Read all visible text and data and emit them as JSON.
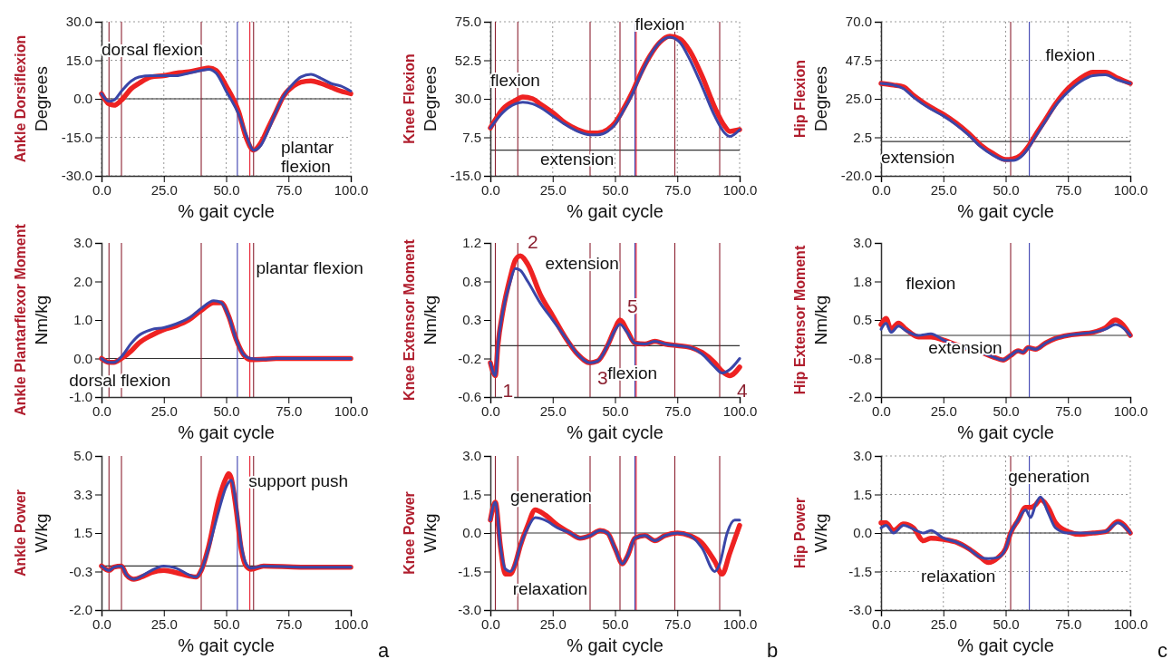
{
  "chart_data": [
    {
      "type": "line",
      "title": "Ankle Dorsiflexion",
      "ylabel": "Degrees",
      "xlabel": "% gait cycle",
      "grid": true,
      "xlim": [
        0,
        100
      ],
      "ylim": [
        -30,
        30
      ],
      "xticks": [
        {
          "value": 0,
          "label": "0.0"
        },
        {
          "value": 25,
          "label": "25.0"
        },
        {
          "value": 50,
          "label": "50.0"
        },
        {
          "value": 75,
          "label": "75.0"
        },
        {
          "value": 100,
          "label": "100.0"
        }
      ],
      "yticks": [
        {
          "value": -30,
          "label": "-30.0"
        },
        {
          "value": -15,
          "label": "-15.0"
        },
        {
          "value": 0,
          "label": "0.0"
        },
        {
          "value": 15,
          "label": "15.0"
        },
        {
          "value": 30,
          "label": "30.0"
        }
      ],
      "series": [
        {
          "color": "#ee2222",
          "x": [
            0,
            3,
            5,
            8,
            12,
            15,
            20,
            25,
            30,
            35,
            40,
            43,
            46,
            50,
            55,
            58,
            61,
            64,
            67,
            70,
            73,
            77,
            80,
            84,
            88,
            92,
            96,
            100
          ],
          "values": [
            2,
            -2,
            -2.5,
            -0.5,
            4,
            6,
            8.5,
            9,
            10,
            10.5,
            11.5,
            12,
            11,
            5,
            -5,
            -15,
            -20,
            -17,
            -11,
            -5,
            1,
            5,
            6.5,
            7,
            6,
            4.5,
            3,
            2
          ]
        },
        {
          "color": "#3a46a8",
          "x": [
            0,
            3,
            5,
            8,
            12,
            15,
            20,
            25,
            30,
            35,
            40,
            43,
            46,
            50,
            55,
            58,
            61,
            64,
            67,
            70,
            73,
            77,
            80,
            84,
            88,
            92,
            96,
            100
          ],
          "values": [
            2,
            -1,
            -0.5,
            3,
            7,
            8.5,
            9,
            9,
            9,
            10,
            11,
            11.5,
            10,
            3,
            -6,
            -14,
            -20,
            -18,
            -12,
            -5,
            1,
            6,
            8.5,
            9.5,
            8,
            6,
            5,
            3
          ]
        }
      ],
      "ref_lines": [
        {
          "axis": "y",
          "value": 0,
          "color": "#333333"
        },
        {
          "axis": "x",
          "value": 3,
          "color": "#8b2030"
        },
        {
          "axis": "x",
          "value": 8,
          "color": "#8b2030"
        },
        {
          "axis": "x",
          "value": 40,
          "color": "#8b2030"
        },
        {
          "axis": "x",
          "value": 54.5,
          "color": "#3b3fb0"
        },
        {
          "axis": "x",
          "value": 59.5,
          "color": "#e8192c"
        },
        {
          "axis": "x",
          "value": 61,
          "color": "#8b2030"
        }
      ],
      "annotations": [
        "dorsal flexion",
        "plantar flexion"
      ]
    },
    {
      "type": "line",
      "title": "Knee Flexion",
      "ylabel": "Degrees",
      "xlabel": "% gait cycle",
      "grid": true,
      "xlim": [
        0,
        100
      ],
      "ylim": [
        -15,
        75
      ],
      "xticks": [
        {
          "value": 0,
          "label": "0.0"
        },
        {
          "value": 25,
          "label": "25.0"
        },
        {
          "value": 50,
          "label": "50.0"
        },
        {
          "value": 75,
          "label": "75.0"
        },
        {
          "value": 100,
          "label": "100.0"
        }
      ],
      "yticks": [
        {
          "value": -15,
          "label": "-15.0"
        },
        {
          "value": 7.5,
          "label": "7.5"
        },
        {
          "value": 30,
          "label": "30.0"
        },
        {
          "value": 52.5,
          "label": "52.5"
        },
        {
          "value": 75,
          "label": "75.0"
        }
      ],
      "series": [
        {
          "color": "#ee2222",
          "x": [
            0,
            5,
            10,
            13,
            17,
            20,
            25,
            30,
            35,
            40,
            43,
            47,
            50,
            53,
            57,
            60,
            64,
            68,
            72,
            76,
            80,
            85,
            90,
            94,
            96,
            100
          ],
          "values": [
            13,
            24,
            29,
            31,
            30,
            27,
            22,
            16,
            12,
            10,
            10,
            12,
            16,
            23,
            34,
            44,
            55,
            63,
            66.5,
            65,
            58,
            43,
            25,
            14,
            11,
            12
          ]
        },
        {
          "color": "#3a46a8",
          "x": [
            0,
            5,
            10,
            13,
            17,
            20,
            25,
            30,
            35,
            40,
            43,
            47,
            50,
            53,
            57,
            60,
            64,
            68,
            72,
            76,
            80,
            85,
            90,
            94,
            96,
            100
          ],
          "values": [
            13,
            22,
            27,
            28,
            27,
            25,
            20,
            15,
            11,
            9,
            9,
            11,
            15,
            22,
            33,
            43,
            55,
            63,
            66,
            63,
            53,
            37,
            20,
            10,
            8,
            12
          ]
        }
      ],
      "ref_lines": [
        {
          "axis": "y",
          "value": 0,
          "color": "#333333"
        },
        {
          "axis": "x",
          "value": 2,
          "color": "#8b2030"
        },
        {
          "axis": "x",
          "value": 11,
          "color": "#8b2030"
        },
        {
          "axis": "x",
          "value": 40,
          "color": "#8b2030"
        },
        {
          "axis": "x",
          "value": 52,
          "color": "#8b2030"
        },
        {
          "axis": "x",
          "value": 58,
          "color": "#3b3fb0"
        },
        {
          "axis": "x",
          "value": 58.5,
          "color": "#e8192c"
        },
        {
          "axis": "x",
          "value": 74,
          "color": "#8b2030"
        },
        {
          "axis": "x",
          "value": 92,
          "color": "#8b2030"
        }
      ],
      "annotations": [
        "flexion",
        "flexion",
        "extension"
      ]
    },
    {
      "type": "line",
      "title": "Hip Flexion",
      "ylabel": "Degrees",
      "xlabel": "% gait cycle",
      "grid": true,
      "xlim": [
        0,
        100
      ],
      "ylim": [
        -20,
        70
      ],
      "xticks": [
        {
          "value": 0,
          "label": "0.0"
        },
        {
          "value": 25,
          "label": "25.0"
        },
        {
          "value": 50,
          "label": "50.0"
        },
        {
          "value": 75,
          "label": "75.0"
        },
        {
          "value": 100,
          "label": "100.0"
        }
      ],
      "yticks": [
        {
          "value": -20,
          "label": "-20.0"
        },
        {
          "value": 2.5,
          "label": "2.5"
        },
        {
          "value": 25,
          "label": "25.0"
        },
        {
          "value": 47.5,
          "label": "47.5"
        },
        {
          "value": 70,
          "label": "70.0"
        }
      ],
      "series": [
        {
          "color": "#ee2222",
          "x": [
            0,
            5,
            9,
            13,
            20,
            25,
            30,
            35,
            40,
            45,
            50,
            53,
            56,
            59,
            62,
            66,
            70,
            75,
            80,
            85,
            90,
            95,
            100
          ],
          "values": [
            34,
            33,
            32,
            27,
            20,
            16,
            11,
            5,
            -2,
            -7,
            -10.5,
            -10,
            -8,
            -3,
            4,
            13,
            22,
            31,
            37,
            40.5,
            40.5,
            37,
            34
          ]
        },
        {
          "color": "#3a46a8",
          "x": [
            0,
            5,
            9,
            13,
            20,
            25,
            30,
            35,
            40,
            45,
            50,
            53,
            56,
            59,
            62,
            66,
            70,
            75,
            80,
            85,
            90,
            95,
            100
          ],
          "values": [
            34,
            33,
            31,
            26,
            19,
            15,
            10,
            4,
            -3,
            -8,
            -11,
            -11,
            -9,
            -4,
            3,
            12,
            21,
            29,
            35,
            38.5,
            39,
            36,
            34
          ]
        }
      ],
      "ref_lines": [
        {
          "axis": "y",
          "value": 0,
          "color": "#333333"
        },
        {
          "axis": "x",
          "value": 52,
          "color": "#8b2030"
        },
        {
          "axis": "x",
          "value": 59.5,
          "color": "#3b3fb0"
        }
      ],
      "annotations": [
        "flexion",
        "extension"
      ]
    },
    {
      "type": "line",
      "title": "Ankle Plantarflexor Moment",
      "ylabel": "Nm/kg",
      "xlabel": "% gait cycle",
      "xlim": [
        0,
        100
      ],
      "ylim": [
        -1,
        3
      ],
      "xticks": [
        {
          "value": 0,
          "label": "0.0"
        },
        {
          "value": 25,
          "label": "25.0"
        },
        {
          "value": 50,
          "label": "50.0"
        },
        {
          "value": 75,
          "label": "75.0"
        },
        {
          "value": 100,
          "label": "100.0"
        }
      ],
      "yticks": [
        {
          "value": -1,
          "label": "-1.0"
        },
        {
          "value": 0,
          "label": "0.0"
        },
        {
          "value": 1,
          "label": "1.0"
        },
        {
          "value": 2,
          "label": "2.0"
        },
        {
          "value": 3,
          "label": "3.0"
        }
      ],
      "series": [
        {
          "color": "#ee2222",
          "x": [
            0,
            3,
            5,
            8,
            12,
            15,
            20,
            25,
            30,
            35,
            40,
            45,
            48,
            51,
            54,
            57,
            60,
            65,
            70,
            80,
            90,
            100
          ],
          "values": [
            0,
            -0.1,
            -0.1,
            0,
            0.2,
            0.4,
            0.6,
            0.75,
            0.85,
            1,
            1.25,
            1.45,
            1.45,
            1.1,
            0.5,
            0.1,
            -0.03,
            -0.02,
            0,
            0,
            0,
            0
          ]
        },
        {
          "color": "#3a46a8",
          "x": [
            0,
            3,
            5,
            8,
            12,
            15,
            20,
            25,
            30,
            35,
            40,
            45,
            48,
            51,
            54,
            57,
            60,
            65,
            70,
            80,
            90,
            100
          ],
          "values": [
            0,
            -0.1,
            -0.1,
            0.05,
            0.4,
            0.6,
            0.75,
            0.8,
            0.9,
            1.05,
            1.3,
            1.5,
            1.45,
            1.1,
            0.5,
            0.1,
            0,
            -0.02,
            0,
            0,
            0,
            0
          ]
        }
      ],
      "ref_lines": [
        {
          "axis": "y",
          "value": 0,
          "color": "#333333"
        },
        {
          "axis": "x",
          "value": 3,
          "color": "#8b2030"
        },
        {
          "axis": "x",
          "value": 8,
          "color": "#8b2030"
        },
        {
          "axis": "x",
          "value": 40,
          "color": "#8b2030"
        },
        {
          "axis": "x",
          "value": 54.5,
          "color": "#3b3fb0"
        },
        {
          "axis": "x",
          "value": 59.5,
          "color": "#e8192c"
        },
        {
          "axis": "x",
          "value": 61,
          "color": "#8b2030"
        }
      ],
      "annotations": [
        "plantar flexion",
        "dorsal flexion"
      ]
    },
    {
      "type": "line",
      "title": "Knee Extensor Moment",
      "ylabel": "Nm/kg",
      "xlabel": "% gait cycle",
      "xlim": [
        0,
        100
      ],
      "ylim": [
        -0.6,
        1.2
      ],
      "xticks": [
        {
          "value": 0,
          "label": "0.0"
        },
        {
          "value": 25,
          "label": "25.0"
        },
        {
          "value": 50,
          "label": "50.0"
        },
        {
          "value": 75,
          "label": "75.0"
        },
        {
          "value": 100,
          "label": "100.0"
        }
      ],
      "yticks": [
        {
          "value": -0.6,
          "label": "-0.6"
        },
        {
          "value": -0.15,
          "label": "-0.2"
        },
        {
          "value": 0.3,
          "label": "0.3"
        },
        {
          "value": 0.75,
          "label": "0.8"
        },
        {
          "value": 1.2,
          "label": "1.2"
        }
      ],
      "series": [
        {
          "color": "#ee2222",
          "x": [
            0,
            2,
            3,
            5,
            8,
            10,
            12,
            15,
            20,
            25,
            30,
            35,
            40,
            43,
            47,
            50,
            52,
            55,
            58,
            62,
            66,
            70,
            75,
            80,
            85,
            90,
            93,
            96,
            100
          ],
          "values": [
            -0.2,
            -0.35,
            0,
            0.4,
            0.8,
            1,
            1.05,
            0.95,
            0.6,
            0.35,
            0.1,
            -0.1,
            -0.2,
            -0.18,
            0,
            0.2,
            0.3,
            0.17,
            0.03,
            0.02,
            0.05,
            0.02,
            0,
            -0.02,
            -0.08,
            -0.2,
            -0.3,
            -0.35,
            -0.25
          ]
        },
        {
          "color": "#3a46a8",
          "x": [
            0,
            2,
            3,
            5,
            8,
            10,
            12,
            15,
            20,
            25,
            30,
            35,
            40,
            43,
            47,
            50,
            52,
            55,
            58,
            62,
            66,
            70,
            75,
            80,
            85,
            90,
            93,
            96,
            100
          ],
          "values": [
            -0.2,
            -0.35,
            0,
            0.4,
            0.75,
            0.9,
            0.88,
            0.75,
            0.5,
            0.3,
            0.1,
            -0.1,
            -0.2,
            -0.18,
            0,
            0.18,
            0.25,
            0.15,
            0.03,
            0.02,
            0.05,
            0.02,
            0,
            -0.02,
            -0.1,
            -0.25,
            -0.32,
            -0.28,
            -0.15
          ]
        }
      ],
      "ref_lines": [
        {
          "axis": "y",
          "value": 0,
          "color": "#333333"
        },
        {
          "axis": "x",
          "value": 2,
          "color": "#8b2030"
        },
        {
          "axis": "x",
          "value": 11,
          "color": "#8b2030"
        },
        {
          "axis": "x",
          "value": 40,
          "color": "#8b2030"
        },
        {
          "axis": "x",
          "value": 52,
          "color": "#8b2030"
        },
        {
          "axis": "x",
          "value": 58,
          "color": "#3b3fb0"
        },
        {
          "axis": "x",
          "value": 58.5,
          "color": "#e8192c"
        },
        {
          "axis": "x",
          "value": 74,
          "color": "#8b2030"
        },
        {
          "axis": "x",
          "value": 92,
          "color": "#8b2030"
        }
      ],
      "annotations": [
        {
          "text": "2",
          "x": 12,
          "y": 1.05
        },
        "extension",
        {
          "text": "5",
          "x": 52,
          "y": 0.3
        },
        {
          "text": "1",
          "x": 2,
          "y": -0.35
        },
        {
          "text": "3",
          "x": 40,
          "y": -0.2
        },
        "flexion",
        {
          "text": "4",
          "x": 96,
          "y": -0.35
        }
      ]
    },
    {
      "type": "line",
      "title": "Hip Extensor Moment",
      "ylabel": "Nm/kg",
      "xlabel": "% gait cycle",
      "xlim": [
        0,
        100
      ],
      "ylim": [
        -2,
        3
      ],
      "xticks": [
        {
          "value": 0,
          "label": "0.0"
        },
        {
          "value": 25,
          "label": "25.0"
        },
        {
          "value": 50,
          "label": "50.0"
        },
        {
          "value": 75,
          "label": "75.0"
        },
        {
          "value": 100,
          "label": "100.0"
        }
      ],
      "yticks": [
        {
          "value": -2,
          "label": "-2.0"
        },
        {
          "value": -0.75,
          "label": "-0.8"
        },
        {
          "value": 0.5,
          "label": "0.5"
        },
        {
          "value": 1.75,
          "label": "1.8"
        },
        {
          "value": 3,
          "label": "3.0"
        }
      ],
      "series": [
        {
          "color": "#ee2222",
          "x": [
            0,
            2,
            4,
            7,
            10,
            15,
            20,
            25,
            30,
            35,
            40,
            45,
            49,
            52,
            55,
            57,
            59,
            62,
            66,
            70,
            75,
            80,
            85,
            90,
            94,
            97,
            100
          ],
          "values": [
            0.35,
            0.55,
            0.2,
            0.4,
            0.2,
            -0.05,
            -0.05,
            -0.15,
            -0.3,
            -0.45,
            -0.55,
            -0.7,
            -0.8,
            -0.65,
            -0.5,
            -0.55,
            -0.4,
            -0.45,
            -0.25,
            -0.1,
            0,
            0.05,
            0.1,
            0.25,
            0.5,
            0.35,
            0
          ]
        },
        {
          "color": "#3a46a8",
          "x": [
            0,
            2,
            4,
            7,
            10,
            15,
            20,
            25,
            30,
            35,
            40,
            45,
            49,
            52,
            55,
            57,
            59,
            62,
            66,
            70,
            75,
            80,
            85,
            90,
            94,
            97,
            100
          ],
          "values": [
            0.2,
            0.4,
            0.1,
            0.3,
            0.15,
            0,
            0.05,
            -0.15,
            -0.3,
            -0.45,
            -0.55,
            -0.7,
            -0.8,
            -0.65,
            -0.5,
            -0.55,
            -0.4,
            -0.45,
            -0.25,
            -0.1,
            0,
            0.05,
            0.1,
            0.2,
            0.35,
            0.25,
            0
          ]
        }
      ],
      "ref_lines": [
        {
          "axis": "y",
          "value": 0,
          "color": "#333333"
        },
        {
          "axis": "x",
          "value": 52,
          "color": "#8b2030"
        },
        {
          "axis": "x",
          "value": 59.5,
          "color": "#3b3fb0"
        }
      ],
      "annotations": [
        "flexion",
        "extension"
      ]
    },
    {
      "type": "line",
      "title": "Ankle Power",
      "ylabel": "W/kg",
      "xlabel": "% gait cycle",
      "xlim": [
        0,
        100
      ],
      "ylim": [
        -2,
        5
      ],
      "xticks": [
        {
          "value": 0,
          "label": "0.0"
        },
        {
          "value": 25,
          "label": "25.0"
        },
        {
          "value": 50,
          "label": "50.0"
        },
        {
          "value": 75,
          "label": "75.0"
        },
        {
          "value": 100,
          "label": "100.0"
        }
      ],
      "yticks": [
        {
          "value": -2,
          "label": "-2.0"
        },
        {
          "value": -0.25,
          "label": "-0.3"
        },
        {
          "value": 1.5,
          "label": "1.5"
        },
        {
          "value": 3.25,
          "label": "3.3"
        },
        {
          "value": 5,
          "label": "5.0"
        }
      ],
      "series": [
        {
          "color": "#ee2222",
          "x": [
            0,
            3,
            5,
            8,
            10,
            13,
            17,
            20,
            25,
            30,
            35,
            38,
            40,
            43,
            47,
            50,
            51,
            52,
            54,
            56,
            58,
            60,
            65,
            80,
            100
          ],
          "values": [
            0,
            -0.2,
            -0.05,
            0,
            -0.4,
            -0.6,
            -0.45,
            -0.3,
            -0.2,
            -0.3,
            -0.45,
            -0.5,
            -0.2,
            0.9,
            3,
            4,
            4.2,
            4,
            2.6,
            0.8,
            0,
            -0.15,
            0,
            -0.05,
            -0.05
          ]
        },
        {
          "color": "#3a46a8",
          "x": [
            0,
            3,
            5,
            8,
            10,
            13,
            17,
            20,
            25,
            30,
            35,
            38,
            40,
            43,
            47,
            50,
            51,
            52,
            54,
            56,
            58,
            60,
            65,
            80,
            100
          ],
          "values": [
            0,
            -0.2,
            -0.05,
            0,
            -0.4,
            -0.6,
            -0.4,
            -0.2,
            0,
            -0.1,
            -0.4,
            -0.5,
            -0.2,
            0.8,
            2.5,
            3.6,
            3.8,
            3.9,
            2.8,
            1,
            0.1,
            -0.1,
            0,
            -0.05,
            -0.05
          ]
        }
      ],
      "ref_lines": [
        {
          "axis": "y",
          "value": 0,
          "color": "#333333"
        },
        {
          "axis": "x",
          "value": 3,
          "color": "#8b2030"
        },
        {
          "axis": "x",
          "value": 8,
          "color": "#8b2030"
        },
        {
          "axis": "x",
          "value": 40,
          "color": "#8b2030"
        },
        {
          "axis": "x",
          "value": 54.5,
          "color": "#3b3fb0"
        },
        {
          "axis": "x",
          "value": 59.5,
          "color": "#e8192c"
        },
        {
          "axis": "x",
          "value": 61,
          "color": "#8b2030"
        }
      ],
      "annotations": [
        "support push",
        "a"
      ]
    },
    {
      "type": "line",
      "title": "Knee Power",
      "ylabel": "W/kg",
      "xlabel": "% gait cycle",
      "xlim": [
        0,
        100
      ],
      "ylim": [
        -3,
        3
      ],
      "xticks": [
        {
          "value": 0,
          "label": "0.0"
        },
        {
          "value": 25,
          "label": "25.0"
        },
        {
          "value": 50,
          "label": "50.0"
        },
        {
          "value": 75,
          "label": "75.0"
        },
        {
          "value": 100,
          "label": "100.0"
        }
      ],
      "yticks": [
        {
          "value": -3,
          "label": "-3.0"
        },
        {
          "value": -1.5,
          "label": "-1.5"
        },
        {
          "value": 0,
          "label": "0.0"
        },
        {
          "value": 1.5,
          "label": "1.5"
        },
        {
          "value": 3,
          "label": "3.0"
        }
      ],
      "series": [
        {
          "color": "#ee2222",
          "x": [
            0,
            2,
            4,
            6,
            8,
            10,
            12,
            15,
            18,
            22,
            27,
            32,
            36,
            40,
            44,
            47,
            50,
            53,
            55,
            58,
            62,
            66,
            70,
            75,
            80,
            85,
            90,
            93,
            96,
            100
          ],
          "values": [
            0.5,
            1.2,
            -0.5,
            -1.6,
            -1.6,
            -1.2,
            -0.5,
            0.3,
            0.9,
            0.7,
            0.3,
            0,
            -0.2,
            -0.1,
            0.1,
            0,
            -0.6,
            -1.2,
            -0.9,
            -0.2,
            -0.1,
            -0.3,
            -0.1,
            0,
            -0.1,
            -0.4,
            -1.1,
            -1.6,
            -0.8,
            0.3
          ]
        },
        {
          "color": "#3a46a8",
          "x": [
            0,
            2,
            4,
            6,
            8,
            10,
            12,
            15,
            18,
            22,
            27,
            32,
            36,
            40,
            44,
            47,
            50,
            53,
            55,
            58,
            62,
            66,
            70,
            75,
            80,
            85,
            90,
            92,
            95,
            98,
            100
          ],
          "values": [
            0.5,
            1.2,
            -0.5,
            -1.4,
            -1.5,
            -1.2,
            -0.5,
            0.2,
            0.6,
            0.5,
            0.2,
            0,
            -0.2,
            -0.1,
            0.1,
            0,
            -0.6,
            -1.2,
            -0.9,
            -0.2,
            -0.1,
            -0.3,
            -0.1,
            0,
            -0.1,
            -0.6,
            -1.5,
            -1.2,
            0,
            0.5,
            0.5
          ]
        }
      ],
      "ref_lines": [
        {
          "axis": "y",
          "value": 0,
          "color": "#333333"
        },
        {
          "axis": "x",
          "value": 2,
          "color": "#8b2030"
        },
        {
          "axis": "x",
          "value": 11,
          "color": "#8b2030"
        },
        {
          "axis": "x",
          "value": 40,
          "color": "#8b2030"
        },
        {
          "axis": "x",
          "value": 52,
          "color": "#8b2030"
        },
        {
          "axis": "x",
          "value": 58,
          "color": "#3b3fb0"
        },
        {
          "axis": "x",
          "value": 58.5,
          "color": "#e8192c"
        },
        {
          "axis": "x",
          "value": 74,
          "color": "#8b2030"
        },
        {
          "axis": "x",
          "value": 92,
          "color": "#8b2030"
        }
      ],
      "annotations": [
        "generation",
        "relaxation",
        "b"
      ]
    },
    {
      "type": "line",
      "title": "Hip Power",
      "ylabel": "W/kg",
      "xlabel": "% gait cycle",
      "grid": true,
      "xlim": [
        0,
        100
      ],
      "ylim": [
        -3,
        3
      ],
      "xticks": [
        {
          "value": 0,
          "label": "0.0"
        },
        {
          "value": 25,
          "label": "25.0"
        },
        {
          "value": 50,
          "label": "50.0"
        },
        {
          "value": 75,
          "label": "75.0"
        },
        {
          "value": 100,
          "label": "100.0"
        }
      ],
      "yticks": [
        {
          "value": -3,
          "label": "-3.0"
        },
        {
          "value": -1.5,
          "label": "-1.5"
        },
        {
          "value": 0,
          "label": "0.0"
        },
        {
          "value": 1.5,
          "label": "1.5"
        },
        {
          "value": 3,
          "label": "3.0"
        }
      ],
      "series": [
        {
          "color": "#ee2222",
          "x": [
            0,
            2,
            5,
            9,
            13,
            17,
            20,
            25,
            30,
            35,
            40,
            43,
            47,
            50,
            52,
            55,
            58,
            60,
            62,
            64,
            67,
            70,
            75,
            80,
            85,
            90,
            95,
            100
          ],
          "values": [
            0.4,
            0.4,
            0.1,
            0.35,
            0.2,
            -0.3,
            -0.2,
            -0.25,
            -0.35,
            -0.6,
            -0.95,
            -1.15,
            -0.95,
            -0.6,
            0,
            0.5,
            1,
            1,
            1.1,
            1.3,
            1,
            0.4,
            0.05,
            -0.05,
            0,
            0.05,
            0.45,
            0
          ]
        },
        {
          "color": "#3a46a8",
          "x": [
            0,
            2,
            5,
            9,
            13,
            17,
            20,
            25,
            30,
            35,
            40,
            43,
            47,
            50,
            52,
            55,
            58,
            60,
            62,
            64,
            67,
            70,
            75,
            80,
            85,
            90,
            95,
            100
          ],
          "values": [
            0.2,
            0.3,
            0,
            0.3,
            0.15,
            0,
            0.1,
            -0.2,
            -0.35,
            -0.6,
            -0.95,
            -1,
            -0.95,
            -0.6,
            0,
            0.5,
            0.9,
            0.6,
            1.1,
            1.4,
            0.8,
            0.2,
            0,
            0,
            0,
            0.05,
            0.4,
            0
          ]
        }
      ],
      "ref_lines": [
        {
          "axis": "y",
          "value": 0,
          "color": "#333333"
        },
        {
          "axis": "x",
          "value": 52,
          "color": "#8b2030"
        },
        {
          "axis": "x",
          "value": 59.5,
          "color": "#3b3fb0"
        }
      ],
      "annotations": [
        "generation",
        "relaxation",
        "c"
      ]
    }
  ]
}
